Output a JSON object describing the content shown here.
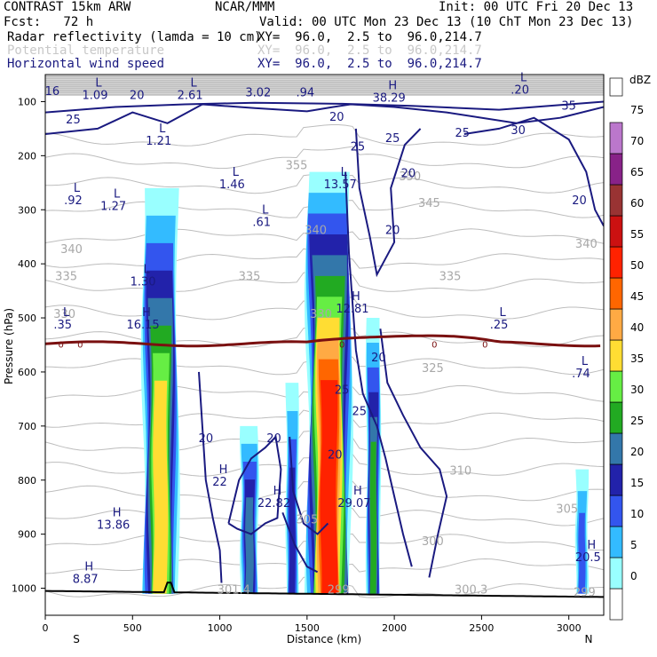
{
  "header": {
    "model": "CONTRAST 15km ARW",
    "org": "NCAR/MMM",
    "init": "Init: 00 UTC Fri 20 Dec 13",
    "fcst": "Fcst:   72 h",
    "valid": "Valid: 00 UTC Mon 23 Dec 13 (10 ChT Mon 23 Dec 13)",
    "fields": [
      {
        "name": "Radar reflectivity (lamda = 10 cm)",
        "xy": "XY=  96.0,  2.5 to  96.0,214.7"
      },
      {
        "name": "Potential temperature",
        "xy": "XY=  96.0,  2.5 to  96.0,214.7"
      },
      {
        "name": "Horizontal wind speed",
        "xy": "XY=  96.0,  2.5 to  96.0,214.7"
      }
    ]
  },
  "chart_data": {
    "type": "cross-section",
    "xlabel": "Distance (km)",
    "ylabel": "Pressure (hPa)",
    "xlim": [
      0,
      3200
    ],
    "ylim": [
      1050,
      50
    ],
    "x_ticks": [
      0,
      500,
      1000,
      1500,
      2000,
      2500,
      3000
    ],
    "y_ticks": [
      100,
      200,
      300,
      400,
      500,
      600,
      700,
      800,
      900,
      1000
    ],
    "x_end_labels": {
      "left": "S",
      "right": "N"
    },
    "colorbar": {
      "unit": "dBZ",
      "levels": [
        0,
        5,
        10,
        15,
        20,
        25,
        30,
        35,
        40,
        45,
        50,
        55,
        60,
        65,
        70,
        75
      ],
      "colors": [
        "#ffffff",
        "#99ffff",
        "#33bbff",
        "#3355ee",
        "#2222aa",
        "#3377aa",
        "#22aa22",
        "#66ee44",
        "#ffdd33",
        "#ffaa44",
        "#ff6600",
        "#ff2200",
        "#cc1111",
        "#993333",
        "#882288",
        "#bb77cc",
        "#ffffff"
      ]
    },
    "reflectivity_cells": [
      {
        "x": [
          560,
          760
        ],
        "p_top": 260,
        "max_dbz": 40
      },
      {
        "x": [
          1500,
          1750
        ],
        "p_top": 230,
        "max_dbz": 55
      },
      {
        "x": [
          1840,
          1920
        ],
        "p_top": 500,
        "max_dbz": 30
      },
      {
        "x": [
          1120,
          1220
        ],
        "p_top": 700,
        "max_dbz": 25
      },
      {
        "x": [
          1380,
          1450
        ],
        "p_top": 620,
        "max_dbz": 20
      },
      {
        "x": [
          3040,
          3110
        ],
        "p_top": 780,
        "max_dbz": 15
      }
    ],
    "zero_contour_label": "0",
    "wind_labels": [
      {
        "text": "L",
        "value": "1.09",
        "x": 285,
        "p": 95
      },
      {
        "text": "L",
        "value": "2.61",
        "x": 830,
        "p": 95
      },
      {
        "text": "",
        "value": "3.02",
        "x": 1220,
        "p": 90
      },
      {
        "text": "",
        "value": ".94",
        "x": 1490,
        "p": 90
      },
      {
        "text": "H",
        "value": "38.29",
        "x": 1970,
        "p": 100
      },
      {
        "text": "L",
        "value": ".20",
        "x": 2720,
        "p": 85
      },
      {
        "text": "L",
        "value": "1.21",
        "x": 650,
        "p": 180
      },
      {
        "text": "L",
        "value": "1.46",
        "x": 1070,
        "p": 260
      },
      {
        "text": "L",
        "value": "13.57",
        "x": 1690,
        "p": 260
      },
      {
        "text": "L",
        "value": ".92",
        "x": 160,
        "p": 290
      },
      {
        "text": "L",
        "value": "1.27",
        "x": 390,
        "p": 300
      },
      {
        "text": "L",
        "value": ".61",
        "x": 1240,
        "p": 330
      },
      {
        "text": "L",
        "value": "1.30",
        "x": 560,
        "p": 440
      },
      {
        "text": "H",
        "value": "12.81",
        "x": 1760,
        "p": 490
      },
      {
        "text": "L",
        "value": ".35",
        "x": 100,
        "p": 520
      },
      {
        "text": "H",
        "value": "16.15",
        "x": 560,
        "p": 520
      },
      {
        "text": "L",
        "value": ".25",
        "x": 2600,
        "p": 520
      },
      {
        "text": "L",
        "value": ".74",
        "x": 3070,
        "p": 610
      },
      {
        "text": "H",
        "value": "22",
        "x": 1000,
        "p": 810
      },
      {
        "text": "H",
        "value": "22.82",
        "x": 1310,
        "p": 850
      },
      {
        "text": "H",
        "value": "29.07",
        "x": 1770,
        "p": 850
      },
      {
        "text": "H",
        "value": "13.86",
        "x": 390,
        "p": 890
      },
      {
        "text": "H",
        "value": "20.5",
        "x": 3110,
        "p": 950
      },
      {
        "text": "H",
        "value": "8.87",
        "x": 230,
        "p": 990
      }
    ],
    "theta_labels": [
      {
        "value": "350",
        "x": 2090,
        "p": 245
      },
      {
        "value": "355",
        "x": 1440,
        "p": 225
      },
      {
        "value": "345",
        "x": 2200,
        "p": 295
      },
      {
        "value": "340",
        "x": 150,
        "p": 380
      },
      {
        "value": "340",
        "x": 1550,
        "p": 345
      },
      {
        "value": "340",
        "x": 3100,
        "p": 370
      },
      {
        "value": "335",
        "x": 120,
        "p": 430
      },
      {
        "value": "335",
        "x": 1170,
        "p": 430
      },
      {
        "value": "335",
        "x": 2320,
        "p": 430
      },
      {
        "value": "330",
        "x": 110,
        "p": 500
      },
      {
        "value": "330",
        "x": 1580,
        "p": 500
      },
      {
        "value": "325",
        "x": 2220,
        "p": 600
      },
      {
        "value": "310",
        "x": 2380,
        "p": 790
      },
      {
        "value": "305",
        "x": 2990,
        "p": 860
      },
      {
        "value": "305",
        "x": 1500,
        "p": 880
      },
      {
        "value": "300",
        "x": 2220,
        "p": 920
      },
      {
        "value": "301.4",
        "x": 1080,
        "p": 1010
      },
      {
        "value": "299",
        "x": 1680,
        "p": 1010
      },
      {
        "value": "300.3",
        "x": 2440,
        "p": 1010
      },
      {
        "value": "299",
        "x": 3090,
        "p": 1015
      }
    ],
    "wind_contour_labels": [
      {
        "value": "16",
        "x": 40,
        "p": 88
      },
      {
        "value": "20",
        "x": 525,
        "p": 95
      },
      {
        "value": "20",
        "x": 1670,
        "p": 135
      },
      {
        "value": "25",
        "x": 160,
        "p": 140
      },
      {
        "value": "25",
        "x": 1790,
        "p": 190
      },
      {
        "value": "25",
        "x": 1990,
        "p": 175
      },
      {
        "value": "25",
        "x": 2390,
        "p": 165
      },
      {
        "value": "30",
        "x": 2710,
        "p": 160
      },
      {
        "value": "35",
        "x": 3000,
        "p": 115
      },
      {
        "value": "20",
        "x": 2080,
        "p": 240
      },
      {
        "value": "20",
        "x": 1990,
        "p": 345
      },
      {
        "value": "20",
        "x": 3060,
        "p": 290
      },
      {
        "value": "20",
        "x": 1910,
        "p": 580
      },
      {
        "value": "25",
        "x": 1700,
        "p": 640
      },
      {
        "value": "25",
        "x": 1800,
        "p": 680
      },
      {
        "value": "20",
        "x": 920,
        "p": 730
      },
      {
        "value": "20",
        "x": 1310,
        "p": 730
      },
      {
        "value": "20",
        "x": 1660,
        "p": 760
      }
    ]
  },
  "colors": {
    "wind_contour": "#1a1a80",
    "theta_contour": "#bdbdbd",
    "zero_line": "#7a1010",
    "terrain": "#000000"
  }
}
